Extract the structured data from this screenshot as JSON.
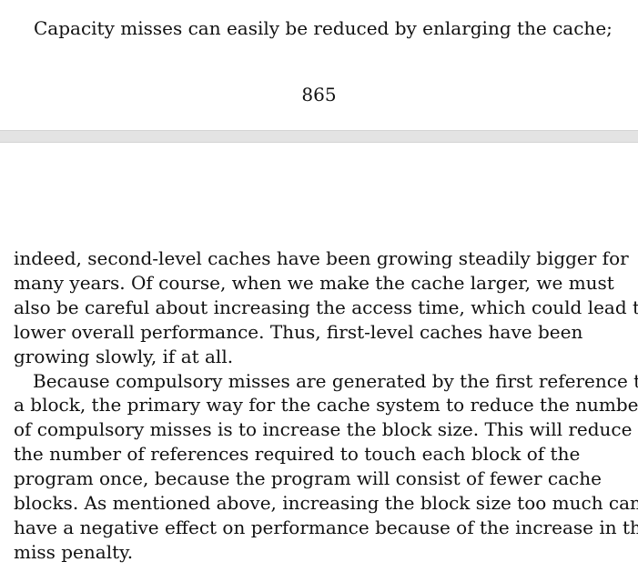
{
  "page_top": {
    "line": "Capacity misses can easily be reduced by enlarging the cache;",
    "page_number": "865"
  },
  "body": {
    "lines": [
      "indeed, second-level caches have been growing steadily bigger for",
      "many years. Of course, when we make the cache larger, we must",
      "also be careful about increasing the access time, which could lead to",
      "lower overall performance. Thus, first-level caches have been",
      "growing slowly, if at all.",
      "Because compulsory misses are generated by the first reference to",
      "a block, the primary way for the cache system to reduce the number",
      "of compulsory misses is to increase the block size. This will reduce",
      "the number of references required to touch each block of the",
      "program once, because the program will consist of fewer cache",
      "blocks. As mentioned above, increasing the block size too much can",
      "have a negative effect on performance because of the increase in the",
      "miss penalty."
    ]
  }
}
